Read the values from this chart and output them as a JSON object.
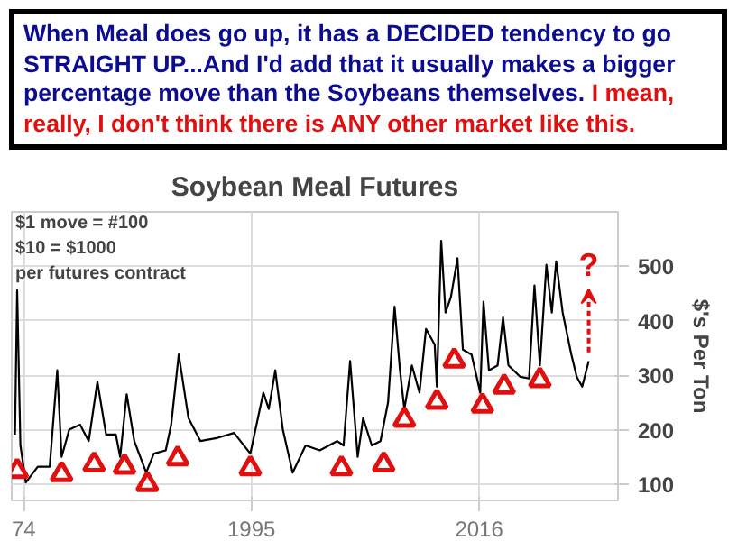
{
  "chart_data": {
    "type": "line",
    "title": "Soybean Meal Futures",
    "subtitle": "When Meal does go up, it has a DECIDED tendency to go STRAIGHT UP...And I'd add that it usually makes a bigger percentage move than the Soybeans themselves.",
    "ylabel": "$'s Per Ton",
    "annotations": [
      "I mean, really, I don't think there is ANY other market like this.",
      "$1 move = #100",
      "$10 = $1000",
      "per futures contract",
      "?"
    ],
    "x": [
      1973.2,
      1973.4,
      1973.7,
      1974.2,
      1975.3,
      1976.4,
      1977.1,
      1977.5,
      1978.2,
      1979.2,
      1980.0,
      1980.8,
      1981.6,
      1982.5,
      1982.9,
      1983.5,
      1984.2,
      1985.3,
      1986.0,
      1987.1,
      1987.6,
      1988.3,
      1989.2,
      1990.3,
      1991.9,
      1993.4,
      1994.9,
      1996.1,
      1996.6,
      1997.2,
      1997.9,
      1998.8,
      2000.0,
      2001.3,
      2002.9,
      2003.5,
      2004.1,
      2004.8,
      2005.3,
      2006.1,
      2006.9,
      2007.6,
      2008.2,
      2008.7,
      2009.1,
      2009.8,
      2010.5,
      2011.1,
      2011.9,
      2012.1,
      2012.5,
      2012.9,
      2013.4,
      2014.0,
      2014.5,
      2015.3,
      2016.1,
      2016.4,
      2016.9,
      2017.7,
      2018.2,
      2018.7,
      2019.8,
      2020.6,
      2021.1,
      2021.6,
      2022.2,
      2022.7,
      2023.1,
      2023.7,
      2024.5,
      2025.0,
      2025.5,
      2026.1
    ],
    "series": [
      {
        "color": "#000000",
        "values": [
          191,
          456,
          171,
          103,
          132,
          132,
          309,
          150,
          200,
          209,
          179,
          288,
          191,
          191,
          150,
          265,
          179,
          121,
          156,
          162,
          209,
          338,
          221,
          179,
          185,
          194,
          156,
          268,
          238,
          309,
          200,
          121,
          171,
          162,
          179,
          171,
          326,
          150,
          221,
          171,
          179,
          250,
          426,
          309,
          238,
          318,
          268,
          385,
          356,
          279,
          547,
          415,
          444,
          515,
          347,
          338,
          268,
          435,
          309,
          318,
          406,
          318,
          297,
          294,
          465,
          318,
          503,
          415,
          509,
          415,
          338,
          297,
          279,
          326
        ]
      },
      {
        "type": "scatter",
        "color": "#e01010",
        "marker": "triangle",
        "x": [
          1973.4,
          1977.5,
          1980.5,
          1983.3,
          1985.4,
          1988.2,
          1994.9,
          2003.3,
          2007.2,
          2009.1,
          2012.1,
          2013.7,
          2016.3,
          2018.3,
          2021.6
        ],
        "values": [
          124,
          118,
          136,
          132,
          100,
          147,
          129,
          129,
          136,
          218,
          251,
          327,
          244,
          279,
          291
        ]
      }
    ],
    "xlim": [
      1972.9,
      2028.8
    ],
    "ylim": [
      70,
      600
    ],
    "xticks": [
      {
        "value": 1974,
        "label": "74"
      },
      1995,
      2016
    ],
    "yticks": [
      100,
      200,
      300,
      400,
      500
    ],
    "grid": true
  }
}
